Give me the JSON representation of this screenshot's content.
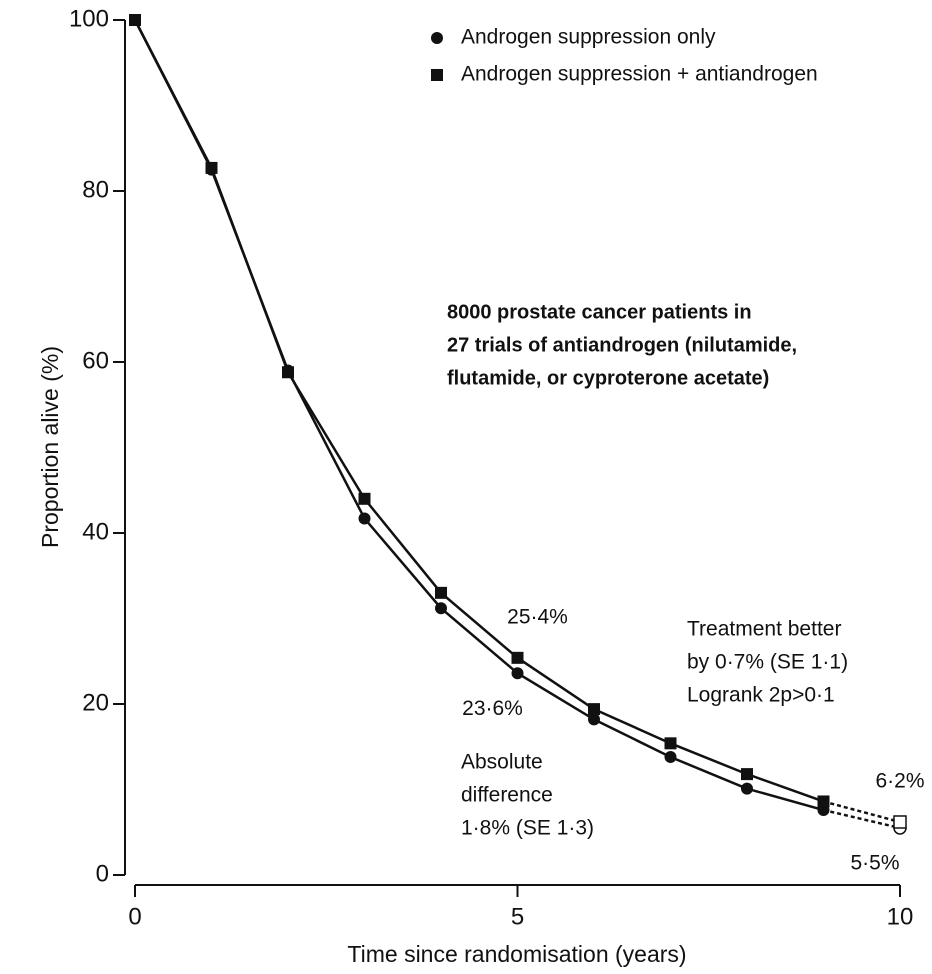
{
  "chart_data": {
    "type": "line",
    "x_label": "Time since randomisation (years)",
    "y_label": "Proportion alive (%)",
    "x": [
      0,
      1,
      2,
      3,
      4,
      5,
      6,
      7,
      8,
      9,
      10
    ],
    "series": [
      {
        "name": "Androgen suppression only",
        "color": "#111111",
        "marker": "circle",
        "values": [
          100,
          82.5,
          59,
          41.7,
          31.2,
          23.6,
          18.2,
          13.8,
          10.1,
          7.6,
          5.5
        ],
        "value_labels": [
          null,
          null,
          null,
          null,
          null,
          "23·6%",
          null,
          null,
          null,
          null,
          "5·5%"
        ]
      },
      {
        "name": "Androgen suppression + antiandrogen",
        "color": "#111111",
        "marker": "square",
        "values": [
          100,
          82.7,
          58.8,
          44,
          33,
          25.4,
          19.4,
          15.4,
          11.8,
          8.6,
          6.2
        ],
        "value_labels": [
          null,
          null,
          null,
          null,
          null,
          "25·4%",
          null,
          null,
          null,
          null,
          "6·2%"
        ]
      }
    ],
    "dashed_last_segment": true,
    "xlim": [
      0,
      10
    ],
    "xticks": [
      0,
      5,
      10
    ],
    "ylim": [
      0,
      100
    ],
    "yticks": [
      0,
      20,
      40,
      60,
      80,
      100
    ],
    "legend": "top-right",
    "annotations": [
      {
        "lines": [
          "8000 prostate cancer patients in",
          "27 trials of antiandrogen (nilutamide,",
          "flutamide, or cyproterone acetate)"
        ]
      },
      {
        "lines": [
          "Treatment better",
          "by 0·7% (SE 1·1)",
          "Logrank 2p>0·1"
        ]
      },
      {
        "lines": [
          "Absolute",
          "difference",
          "1·8% (SE 1·3)"
        ]
      }
    ]
  }
}
